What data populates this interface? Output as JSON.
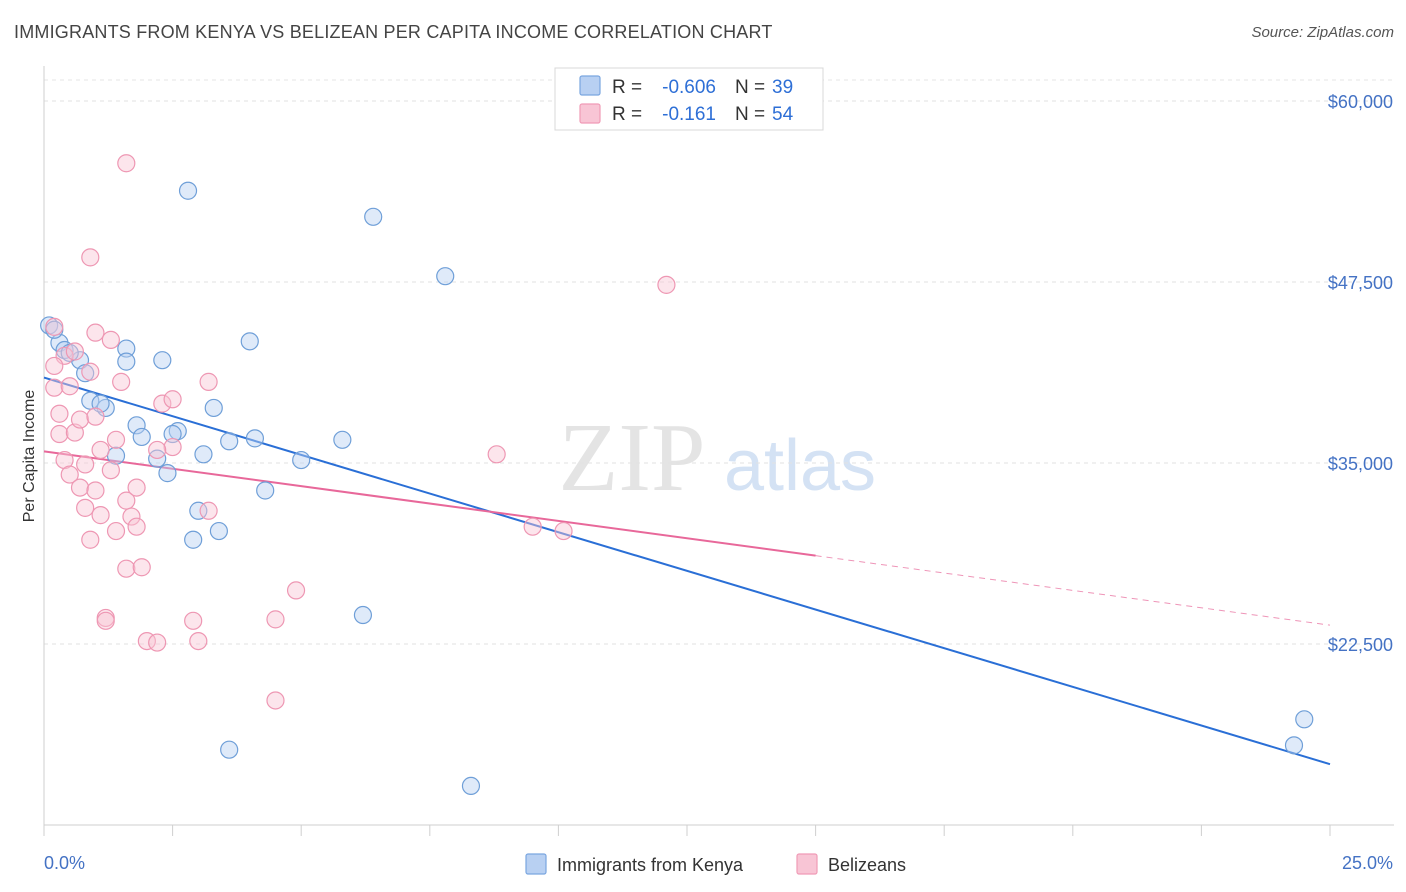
{
  "title": "IMMIGRANTS FROM KENYA VS BELIZEAN PER CAPITA INCOME CORRELATION CHART",
  "source": "Source: ZipAtlas.com",
  "watermark": {
    "zip": "ZIP",
    "atlas": "atlas"
  },
  "chart_data": {
    "type": "scatter",
    "xlabel": "",
    "ylabel": "Per Capita Income",
    "xlim": [
      0,
      25
    ],
    "ylim": [
      10000,
      62000
    ],
    "x_tick_labels": [
      "0.0%",
      "25.0%"
    ],
    "y_ticks": [
      22500,
      35000,
      47500,
      60000
    ],
    "y_tick_labels": [
      "$22,500",
      "$35,000",
      "$47,500",
      "$60,000"
    ],
    "grid": true,
    "legend": [
      {
        "name": "Immigrants from Kenya",
        "r_label": "R =",
        "r": "-0.606",
        "n_label": "N =",
        "n": "39",
        "color": "#7aa6e0",
        "fill": "#b8d0f2"
      },
      {
        "name": "Belizeans",
        "r_label": "R =",
        "r": "-0.161",
        "n_label": "N =",
        "n": "54",
        "color": "#f09bb6",
        "fill": "#f8c5d5"
      }
    ],
    "series": [
      {
        "name": "Immigrants from Kenya",
        "color": "#6f9fd8",
        "trend": {
          "x0": 0.0,
          "y0": 40900,
          "x1": 25.0,
          "y1": 14200,
          "dash_from": null,
          "color": "#2a6fd6"
        },
        "points": [
          [
            0.1,
            44500
          ],
          [
            0.3,
            43300
          ],
          [
            0.4,
            42800
          ],
          [
            0.7,
            42100
          ],
          [
            0.8,
            41200
          ],
          [
            1.6,
            42900
          ],
          [
            1.6,
            42000
          ],
          [
            2.3,
            42100
          ],
          [
            2.8,
            53800
          ],
          [
            0.9,
            39300
          ],
          [
            1.2,
            38800
          ],
          [
            1.8,
            37600
          ],
          [
            2.6,
            37200
          ],
          [
            3.3,
            38800
          ],
          [
            4.0,
            43400
          ],
          [
            3.6,
            36500
          ],
          [
            4.1,
            36700
          ],
          [
            1.9,
            36800
          ],
          [
            1.4,
            35500
          ],
          [
            2.2,
            35300
          ],
          [
            2.4,
            34300
          ],
          [
            5.0,
            35200
          ],
          [
            5.8,
            36600
          ],
          [
            4.3,
            33100
          ],
          [
            3.0,
            31700
          ],
          [
            3.4,
            30300
          ],
          [
            2.9,
            29700
          ],
          [
            6.4,
            52000
          ],
          [
            7.8,
            47900
          ],
          [
            6.2,
            24500
          ],
          [
            3.6,
            15200
          ],
          [
            8.3,
            12700
          ],
          [
            24.3,
            15500
          ],
          [
            24.5,
            17300
          ],
          [
            0.2,
            44200
          ],
          [
            0.5,
            42600
          ],
          [
            1.1,
            39100
          ],
          [
            2.5,
            37000
          ],
          [
            3.1,
            35600
          ]
        ]
      },
      {
        "name": "Belizeans",
        "color": "#ee97b3",
        "trend": {
          "x0": 0.0,
          "y0": 35800,
          "x1": 25.0,
          "y1": 23800,
          "dash_from": 15.0,
          "color": "#e8689a"
        },
        "points": [
          [
            0.2,
            44400
          ],
          [
            0.4,
            42400
          ],
          [
            0.2,
            41700
          ],
          [
            0.2,
            40200
          ],
          [
            0.9,
            41300
          ],
          [
            1.0,
            44000
          ],
          [
            1.3,
            43500
          ],
          [
            1.5,
            40600
          ],
          [
            0.5,
            40300
          ],
          [
            0.3,
            37000
          ],
          [
            0.6,
            37100
          ],
          [
            0.7,
            38000
          ],
          [
            1.0,
            38200
          ],
          [
            0.4,
            35200
          ],
          [
            0.5,
            34200
          ],
          [
            0.8,
            34900
          ],
          [
            1.1,
            35900
          ],
          [
            1.4,
            36600
          ],
          [
            2.3,
            39100
          ],
          [
            2.5,
            39400
          ],
          [
            2.5,
            36100
          ],
          [
            3.2,
            40600
          ],
          [
            0.7,
            33300
          ],
          [
            0.8,
            31900
          ],
          [
            1.0,
            33100
          ],
          [
            1.1,
            31400
          ],
          [
            1.6,
            32400
          ],
          [
            1.8,
            33300
          ],
          [
            1.7,
            31300
          ],
          [
            1.8,
            30600
          ],
          [
            0.9,
            29700
          ],
          [
            1.4,
            30300
          ],
          [
            3.2,
            31700
          ],
          [
            1.6,
            27700
          ],
          [
            1.9,
            27800
          ],
          [
            1.2,
            24300
          ],
          [
            1.2,
            24100
          ],
          [
            2.0,
            22700
          ],
          [
            2.2,
            22600
          ],
          [
            2.9,
            24100
          ],
          [
            3.0,
            22700
          ],
          [
            4.5,
            24200
          ],
          [
            4.9,
            26200
          ],
          [
            4.5,
            18600
          ],
          [
            1.6,
            55700
          ],
          [
            0.9,
            49200
          ],
          [
            12.1,
            47300
          ],
          [
            8.8,
            35600
          ],
          [
            9.5,
            30600
          ],
          [
            10.1,
            30300
          ],
          [
            0.6,
            42700
          ],
          [
            0.3,
            38400
          ],
          [
            1.3,
            34500
          ],
          [
            2.2,
            35900
          ]
        ]
      }
    ]
  }
}
